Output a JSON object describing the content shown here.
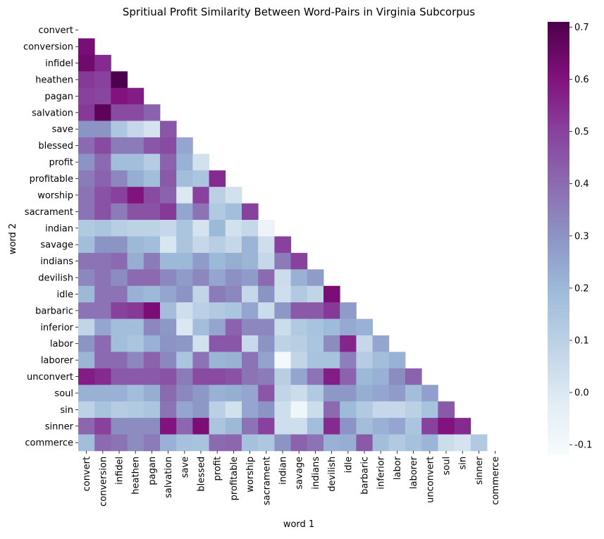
{
  "chart_data": {
    "type": "heatmap",
    "title": "Spritiual Profit Similarity Between Word-Pairs in Virginia Subcorpus",
    "xlabel": "word 1",
    "ylabel": "word 2",
    "labels": [
      "convert",
      "conversion",
      "infidel",
      "heathen",
      "pagan",
      "salvation",
      "save",
      "blessed",
      "profit",
      "profitable",
      "worship",
      "sacrament",
      "indian",
      "savage",
      "indians",
      "devilish",
      "idle",
      "barbaric",
      "inferior",
      "labor",
      "laborer",
      "unconvert",
      "soul",
      "sin",
      "sinner",
      "commerce"
    ],
    "mask": "upper-triangle-and-diagonal",
    "colormap": "BuPu",
    "color_range": [
      -0.12,
      0.71
    ],
    "colorbar_ticks": [
      "0.7",
      "0.6",
      "0.5",
      "0.4",
      "0.3",
      "0.2",
      "0.1",
      "0.0",
      "-0.1"
    ],
    "colorbar_tick_values": [
      0.7,
      0.6,
      0.5,
      0.4,
      0.3,
      0.2,
      0.1,
      0.0,
      -0.1
    ],
    "rows": [
      [],
      [
        0.62
      ],
      [
        0.64,
        0.55
      ],
      [
        0.52,
        0.5,
        0.71
      ],
      [
        0.5,
        0.49,
        0.6,
        0.58
      ],
      [
        0.52,
        0.68,
        0.48,
        0.48,
        0.42
      ],
      [
        0.3,
        0.3,
        0.14,
        0.07,
        0.02,
        0.45
      ],
      [
        0.4,
        0.48,
        0.36,
        0.36,
        0.45,
        0.48,
        0.25
      ],
      [
        0.3,
        0.4,
        0.18,
        0.18,
        0.12,
        0.42,
        0.22,
        0.03
      ],
      [
        0.36,
        0.42,
        0.33,
        0.23,
        0.18,
        0.44,
        0.18,
        0.15,
        0.55
      ],
      [
        0.38,
        0.46,
        0.5,
        0.6,
        0.48,
        0.42,
        0.0,
        0.5,
        0.1,
        0.03
      ],
      [
        0.38,
        0.46,
        0.36,
        0.46,
        0.46,
        0.52,
        0.25,
        0.38,
        0.13,
        0.18,
        0.5
      ],
      [
        0.13,
        0.15,
        0.11,
        0.09,
        0.09,
        0.07,
        0.15,
        0.02,
        0.2,
        0.03,
        0.07,
        -0.07
      ],
      [
        0.18,
        0.3,
        0.3,
        0.2,
        0.18,
        0.01,
        0.15,
        0.07,
        0.11,
        0.07,
        0.21,
        0.04,
        0.5
      ],
      [
        0.38,
        0.38,
        0.4,
        0.23,
        0.36,
        0.2,
        0.2,
        0.28,
        0.2,
        0.23,
        0.21,
        0.07,
        0.36,
        0.5
      ],
      [
        0.33,
        0.38,
        0.32,
        0.4,
        0.4,
        0.33,
        0.28,
        0.33,
        0.25,
        0.31,
        0.28,
        0.4,
        0.05,
        0.22,
        0.28
      ],
      [
        0.2,
        0.38,
        0.38,
        0.22,
        0.2,
        0.25,
        0.3,
        0.08,
        0.36,
        0.33,
        0.07,
        0.3,
        0.04,
        0.13,
        0.08,
        0.62
      ],
      [
        0.38,
        0.38,
        0.5,
        0.52,
        0.62,
        0.18,
        0.04,
        0.1,
        0.13,
        0.15,
        0.25,
        0.05,
        0.29,
        0.44,
        0.44,
        0.52,
        0.28
      ],
      [
        0.08,
        0.25,
        0.18,
        0.18,
        0.33,
        0.29,
        0.0,
        0.18,
        0.25,
        0.42,
        0.33,
        0.33,
        0.05,
        0.13,
        0.16,
        0.19,
        0.24,
        0.22
      ],
      [
        0.3,
        0.4,
        0.18,
        0.15,
        0.22,
        0.3,
        0.29,
        0.03,
        0.45,
        0.45,
        0.06,
        0.3,
        0.09,
        0.11,
        0.15,
        0.32,
        0.56,
        0.07,
        0.25
      ],
      [
        0.21,
        0.4,
        0.4,
        0.33,
        0.42,
        0.33,
        0.15,
        0.38,
        0.21,
        0.22,
        0.38,
        0.26,
        -0.1,
        0.08,
        0.16,
        0.16,
        0.35,
        0.12,
        0.18,
        0.22
      ],
      [
        0.58,
        0.55,
        0.44,
        0.44,
        0.44,
        0.46,
        0.36,
        0.48,
        0.48,
        0.46,
        0.38,
        0.36,
        0.11,
        0.25,
        0.38,
        0.58,
        0.42,
        0.2,
        0.22,
        0.32,
        0.42
      ],
      [
        0.22,
        0.22,
        0.22,
        0.18,
        0.23,
        0.4,
        0.33,
        0.29,
        0.22,
        0.23,
        0.25,
        0.45,
        0.08,
        0.05,
        0.13,
        0.29,
        0.29,
        0.23,
        0.25,
        0.28,
        0.18,
        0.27
      ],
      [
        0.09,
        0.16,
        0.12,
        0.13,
        0.15,
        0.38,
        0.25,
        0.29,
        0.1,
        0.03,
        0.25,
        0.3,
        0.04,
        -0.08,
        0.05,
        0.4,
        0.19,
        0.13,
        0.07,
        0.07,
        0.1,
        0.16,
        0.44
      ],
      [
        0.41,
        0.5,
        0.32,
        0.32,
        0.32,
        0.6,
        0.41,
        0.62,
        0.15,
        0.2,
        0.38,
        0.5,
        0.04,
        0.04,
        0.18,
        0.55,
        0.3,
        0.18,
        0.22,
        0.25,
        0.15,
        0.5,
        0.6,
        0.55
      ],
      [
        0.18,
        0.4,
        0.38,
        0.32,
        0.36,
        0.22,
        0.17,
        0.16,
        0.4,
        0.41,
        0.17,
        0.14,
        0.3,
        0.42,
        0.38,
        0.22,
        0.23,
        0.44,
        0.18,
        0.13,
        0.17,
        0.21,
        0.05,
        0.02,
        0.13
      ]
    ]
  }
}
